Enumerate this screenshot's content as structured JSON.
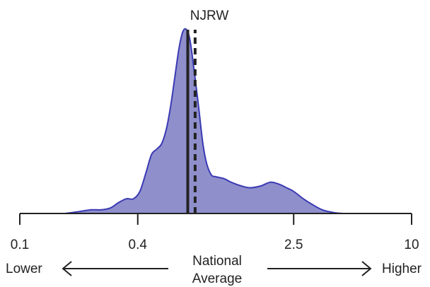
{
  "chart_data": {
    "type": "area",
    "title": "NJRW",
    "x_scale": "log",
    "xlim": [
      0.1,
      10
    ],
    "x_ticks": [
      {
        "value": 0.1,
        "label": "0.1"
      },
      {
        "value": 0.4,
        "label": "0.4"
      },
      {
        "value": 2.5,
        "label": "2.5"
      },
      {
        "value": 10,
        "label": "10"
      }
    ],
    "ylim": [
      0,
      1
    ],
    "grid": false,
    "legend": "none",
    "fill_color": "#8f8fcc",
    "line_color": "#3a3ab4",
    "marker_color": "#222222",
    "density": {
      "x": [
        0.17,
        0.2,
        0.23,
        0.26,
        0.29,
        0.32,
        0.35,
        0.38,
        0.41,
        0.44,
        0.47,
        0.5,
        0.53,
        0.56,
        0.59,
        0.62,
        0.65,
        0.68,
        0.71,
        0.74,
        0.78,
        0.82,
        0.86,
        0.9,
        0.95,
        1.0,
        1.1,
        1.2,
        1.35,
        1.5,
        1.7,
        1.9,
        2.1,
        2.3,
        2.5,
        2.8,
        3.1,
        3.5,
        4.0,
        4.5
      ],
      "y": [
        0.0,
        0.01,
        0.02,
        0.02,
        0.03,
        0.06,
        0.08,
        0.08,
        0.12,
        0.22,
        0.32,
        0.35,
        0.38,
        0.46,
        0.59,
        0.75,
        0.9,
        0.99,
        1.0,
        0.94,
        0.76,
        0.57,
        0.38,
        0.27,
        0.21,
        0.2,
        0.19,
        0.17,
        0.15,
        0.14,
        0.15,
        0.17,
        0.16,
        0.14,
        0.12,
        0.08,
        0.05,
        0.02,
        0.005,
        0.0
      ]
    },
    "markers": [
      {
        "value": 0.72,
        "style": "solid"
      },
      {
        "value": 0.785,
        "style": "dashed"
      }
    ],
    "annotations": {
      "left": "Lower",
      "center": [
        "National",
        "Average"
      ],
      "right": "Higher"
    }
  }
}
